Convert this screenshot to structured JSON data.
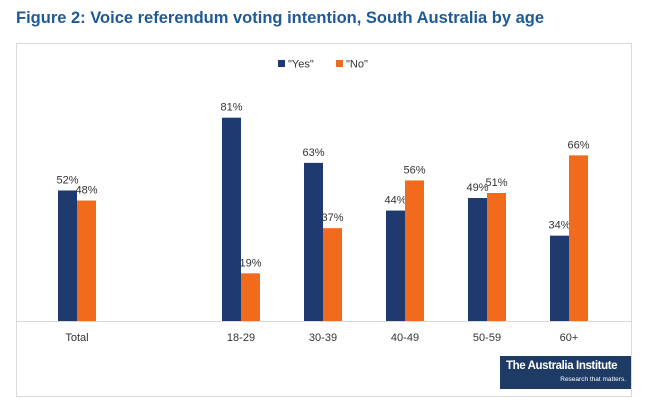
{
  "title": "Figure 2: Voice referendum voting intention, South Australia by age",
  "logo": {
    "name": "The Australia Institute",
    "tagline": "Research that matters."
  },
  "colors": {
    "yes": "#1f3a6e",
    "no": "#f26b1d",
    "title": "#1f5a96",
    "axis": "#d9d9d9"
  },
  "chart_data": {
    "type": "bar",
    "categories": [
      "Total",
      "",
      "18-29",
      "30-39",
      "40-49",
      "50-59",
      "60+"
    ],
    "series": [
      {
        "name": "\"Yes\"",
        "values": [
          52,
          null,
          81,
          63,
          44,
          49,
          34
        ]
      },
      {
        "name": "\"No\"",
        "values": [
          48,
          null,
          19,
          37,
          56,
          51,
          66
        ]
      }
    ],
    "data_labels": [
      [
        "52%",
        null,
        "81%",
        "63%",
        "44%",
        "49%",
        "34%"
      ],
      [
        "48%",
        null,
        "19%",
        "37%",
        "56%",
        "51%",
        "66%"
      ]
    ],
    "ylim": [
      0,
      100
    ],
    "legend": "top-center",
    "grid": false
  }
}
